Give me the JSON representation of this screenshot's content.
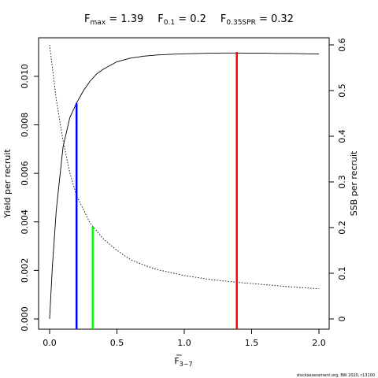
{
  "chart_data": {
    "type": "line",
    "title": {
      "fmax_label": "F",
      "fmax_sub": "max",
      "fmax_value": " = 1.39",
      "f01_label": "F",
      "f01_sub": "0.1",
      "f01_value": " = 0.2",
      "fspr_label": "F",
      "fspr_sub": "0.35SPR",
      "fspr_value": " = 0.32"
    },
    "xlabel": {
      "main": "F",
      "sub": "3−7"
    },
    "ylabel_left": "Yield per recruit",
    "ylabel_right": "SSB per recruit",
    "xlim": [
      0,
      2
    ],
    "ylim_left": [
      0,
      0.011
    ],
    "ylim_right": [
      0,
      0.6
    ],
    "x_ticks": [
      {
        "value": 0.0,
        "label": "0.0"
      },
      {
        "value": 0.5,
        "label": "0.5"
      },
      {
        "value": 1.0,
        "label": "1.0"
      },
      {
        "value": 1.5,
        "label": "1.5"
      },
      {
        "value": 2.0,
        "label": "2.0"
      }
    ],
    "y_left_ticks": [
      {
        "value": 0.0,
        "label": "0.000"
      },
      {
        "value": 0.002,
        "label": "0.002"
      },
      {
        "value": 0.004,
        "label": "0.004"
      },
      {
        "value": 0.006,
        "label": "0.006"
      },
      {
        "value": 0.008,
        "label": "0.008"
      },
      {
        "value": 0.01,
        "label": "0.010"
      }
    ],
    "y_right_ticks": [
      {
        "value": 0.0,
        "label": "0"
      },
      {
        "value": 0.1,
        "label": "0.1"
      },
      {
        "value": 0.2,
        "label": "0.2"
      },
      {
        "value": 0.3,
        "label": "0.3"
      },
      {
        "value": 0.4,
        "label": "0.4"
      },
      {
        "value": 0.5,
        "label": "0.5"
      },
      {
        "value": 0.6,
        "label": "0.6"
      }
    ],
    "series": [
      {
        "axis": "left",
        "style": "solid",
        "color": "#000000",
        "x": [
          0.0,
          0.02,
          0.05,
          0.1,
          0.15,
          0.2,
          0.25,
          0.3,
          0.35,
          0.4,
          0.5,
          0.6,
          0.7,
          0.8,
          0.9,
          1.0,
          1.1,
          1.2,
          1.3,
          1.39,
          1.5,
          1.6,
          1.7,
          1.8,
          1.9,
          2.0
        ],
        "values": [
          0.0,
          0.0021,
          0.0045,
          0.0071,
          0.0083,
          0.0089,
          0.0094,
          0.0098,
          0.0101,
          0.0103,
          0.0106,
          0.01075,
          0.01083,
          0.01088,
          0.01091,
          0.01093,
          0.01094,
          0.01095,
          0.01096,
          0.01096,
          0.01095,
          0.01095,
          0.01094,
          0.01094,
          0.01093,
          0.01092
        ]
      },
      {
        "axis": "right",
        "style": "dotted",
        "color": "#000000",
        "x": [
          0.0,
          0.05,
          0.1,
          0.15,
          0.2,
          0.3,
          0.4,
          0.5,
          0.6,
          0.7,
          0.8,
          1.0,
          1.2,
          1.4,
          1.6,
          1.8,
          2.0
        ],
        "values": [
          0.6,
          0.48,
          0.39,
          0.32,
          0.27,
          0.21,
          0.175,
          0.15,
          0.13,
          0.118,
          0.108,
          0.095,
          0.086,
          0.08,
          0.075,
          0.07,
          0.066
        ]
      }
    ],
    "reference_lines": [
      {
        "name": "F0.1",
        "x": 0.2,
        "y_top": 0.0089,
        "color": "#0000ff"
      },
      {
        "name": "F0.35SPR",
        "x": 0.32,
        "y_top": 0.0038,
        "color": "#00ff00"
      },
      {
        "name": "Fmax",
        "x": 1.39,
        "y_top": 0.011,
        "color": "#ff0000"
      }
    ]
  },
  "footer": "stockassessment.org, BW 2020, r13100"
}
